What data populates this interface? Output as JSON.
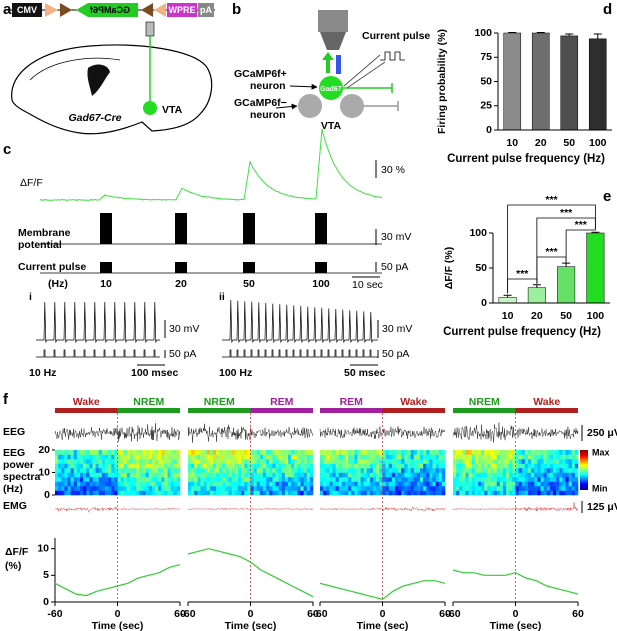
{
  "panel_labels": [
    "a",
    "b",
    "c",
    "d",
    "e",
    "f"
  ],
  "a": {
    "construct": [
      "CMV",
      "GCaMP6f",
      "WPRE",
      "pA"
    ],
    "mouse": "Gad67-Cre",
    "region": "VTA"
  },
  "b": {
    "current": "Current pulse",
    "positive": [
      "GCaMP6f+",
      "neuron"
    ],
    "negative": [
      "GCaMP6f−",
      "neuron"
    ],
    "cell": "Gad67",
    "region": "VTA"
  },
  "c": {
    "dff": "ΔF/F",
    "membrane": [
      "Membrane",
      "potential"
    ],
    "current": "Current pulse",
    "unit": "(Hz)",
    "frequencies": [
      "10",
      "20",
      "50",
      "100"
    ],
    "scale_dff": "30 %",
    "scale_mv": "30 mV",
    "scale_pa": "50 pA",
    "scale_time": "10 sec",
    "insets": [
      {
        "label": "i",
        "mv": "30 mV",
        "pa": "50 pA",
        "time": "100 msec",
        "rate": "10 Hz"
      },
      {
        "label": "ii",
        "mv": "30 mV",
        "pa": "50 pA",
        "time": "50 msec",
        "rate": "100 Hz"
      }
    ]
  },
  "chart_data": [
    {
      "type": "bar",
      "categories": [
        "10",
        "20",
        "50",
        "100"
      ],
      "values": [
        100,
        100,
        97,
        94
      ],
      "errors": [
        0.5,
        0.5,
        2,
        5
      ],
      "colors": [
        "#8c8c8c",
        "#6e6e6e",
        "#4f4f4f",
        "#2e2e2e"
      ],
      "ylim": [
        0,
        100
      ],
      "yticks": [
        0,
        25,
        50,
        75,
        100
      ],
      "ylabel": "Firing probability (%)",
      "xlabel": "Current pulse frequency (Hz)"
    },
    {
      "type": "bar",
      "categories": [
        "10",
        "20",
        "50",
        "100"
      ],
      "values": [
        8,
        22,
        52,
        100
      ],
      "errors": [
        3,
        4,
        5,
        1
      ],
      "colors": [
        "#c8f5c8",
        "#9dee9d",
        "#66e066",
        "#22dd22"
      ],
      "ylim": [
        0,
        100
      ],
      "yticks": [
        0,
        50,
        100
      ],
      "ylabel": "ΔF/F (%)",
      "xlabel": "Current pulse frequency (Hz)",
      "annotations": [
        "***",
        "***",
        "***",
        "***",
        "***"
      ]
    },
    {
      "type": "line",
      "x": [
        -60,
        -50,
        -40,
        -30,
        -20,
        -10,
        0,
        10,
        20,
        30,
        40,
        50,
        60
      ],
      "xlim": [
        -60,
        60
      ],
      "xticks": [
        -60,
        0,
        60
      ],
      "ylim": [
        0,
        12
      ],
      "yticks": [
        0,
        5,
        10
      ],
      "xlabel": "Time (sec)",
      "ylabel": [
        "ΔF/F",
        "(%)"
      ],
      "color": "#33cc33",
      "series": [
        {
          "values": [
            3.5,
            2.5,
            1.5,
            1.2,
            2,
            2.5,
            3,
            3.5,
            4.5,
            5,
            5.5,
            6.5,
            7
          ]
        },
        {
          "values": [
            9,
            9.5,
            10,
            9.5,
            9,
            8.5,
            7.5,
            6,
            5,
            4,
            3,
            2,
            1
          ]
        },
        {
          "values": [
            3.5,
            3,
            2.5,
            2,
            1.5,
            1,
            0.5,
            2,
            3,
            3.5,
            4,
            4,
            3.5
          ]
        },
        {
          "values": [
            6,
            5.5,
            5.5,
            5,
            5,
            5,
            5.5,
            4.5,
            4,
            3,
            2.5,
            2,
            1.5
          ]
        }
      ]
    }
  ],
  "f": {
    "states": [
      [
        "Wake",
        "NREM"
      ],
      [
        "NREM",
        "REM"
      ],
      [
        "REM",
        "Wake"
      ],
      [
        "NREM",
        "Wake"
      ]
    ],
    "state_colors": {
      "Wake": "#b02020",
      "NREM": "#1e9a1e",
      "REM": "#a020a0"
    },
    "eeg": "EEG",
    "spectra": [
      "EEG",
      "power",
      "spectra",
      "(Hz)"
    ],
    "spectra_yticks": [
      0,
      10,
      20
    ],
    "emg": "EMG",
    "scale_eeg": "250 μV",
    "scale_emg": "125 μV",
    "colorbar": [
      "Max",
      "Min"
    ]
  }
}
